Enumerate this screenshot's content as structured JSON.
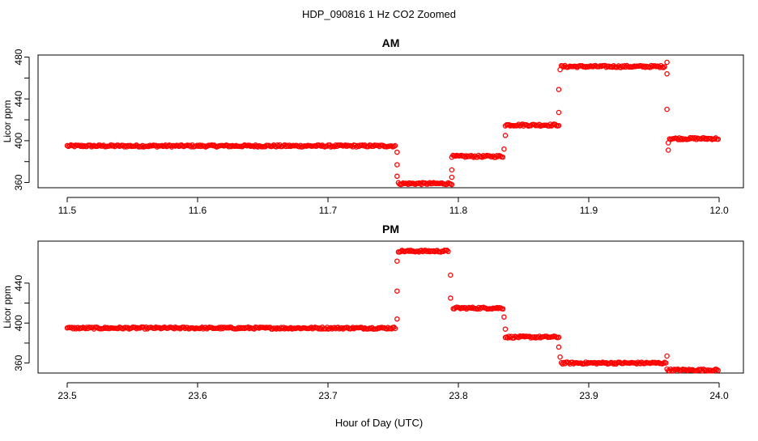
{
  "figure": {
    "title": "HDP_090816  1 Hz CO2 Zoomed",
    "xlabel": "Hour of Day (UTC)"
  },
  "colors": {
    "points": "#ff0000",
    "axis": "#000000"
  },
  "chart_data": [
    {
      "type": "scatter",
      "title": "AM",
      "xlabel": "",
      "ylabel": "Licor ppm",
      "xlim": [
        11.5,
        12.0
      ],
      "ylim": [
        355,
        482
      ],
      "xticks": [
        11.5,
        11.6,
        11.7,
        11.8,
        11.9,
        12.0
      ],
      "xtick_labels": [
        "11.5",
        "11.6",
        "11.7",
        "11.8",
        "11.9",
        "12.0"
      ],
      "yticks": [
        360,
        400,
        440,
        480
      ],
      "ytick_labels": [
        "360",
        "400",
        "440",
        "480"
      ],
      "marker": "open-circle",
      "segments": [
        {
          "x": [
            11.5,
            11.752
          ],
          "y": 395
        },
        {
          "x": [
            11.754,
            11.795
          ],
          "y": 359
        },
        {
          "x": [
            11.795,
            11.835
          ],
          "y": 385
        },
        {
          "x": [
            11.836,
            11.877
          ],
          "y": 415
        },
        {
          "x": [
            11.879,
            11.959
          ],
          "y": 471
        },
        {
          "x": [
            11.962,
            12.0
          ],
          "y": 402
        }
      ],
      "transitions": [
        {
          "x": 11.753,
          "y": 389
        },
        {
          "x": 11.753,
          "y": 377
        },
        {
          "x": 11.753,
          "y": 366
        },
        {
          "x": 11.795,
          "y": 365
        },
        {
          "x": 11.795,
          "y": 372
        },
        {
          "x": 11.835,
          "y": 392
        },
        {
          "x": 11.836,
          "y": 405
        },
        {
          "x": 11.877,
          "y": 427
        },
        {
          "x": 11.877,
          "y": 449
        },
        {
          "x": 11.878,
          "y": 468
        },
        {
          "x": 11.96,
          "y": 475
        },
        {
          "x": 11.96,
          "y": 464
        },
        {
          "x": 11.96,
          "y": 430
        },
        {
          "x": 11.961,
          "y": 398
        },
        {
          "x": 11.961,
          "y": 391
        }
      ]
    },
    {
      "type": "scatter",
      "title": "PM",
      "xlabel": "",
      "ylabel": "Licor ppm",
      "xlim": [
        23.5,
        24.0
      ],
      "ylim": [
        350,
        482
      ],
      "xticks": [
        23.5,
        23.6,
        23.7,
        23.8,
        23.9,
        24.0
      ],
      "xtick_labels": [
        "23.5",
        "23.6",
        "23.7",
        "23.8",
        "23.9",
        "24.0"
      ],
      "yticks": [
        360,
        400,
        440
      ],
      "ytick_labels": [
        "360",
        "400",
        "440"
      ],
      "marker": "open-circle",
      "segments": [
        {
          "x": [
            23.5,
            23.752
          ],
          "y": 395
        },
        {
          "x": [
            23.754,
            23.793
          ],
          "y": 472
        },
        {
          "x": [
            23.796,
            23.835
          ],
          "y": 415
        },
        {
          "x": [
            23.836,
            23.877
          ],
          "y": 386
        },
        {
          "x": [
            23.879,
            23.96
          ],
          "y": 360
        },
        {
          "x": [
            23.961,
            24.0
          ],
          "y": 353
        }
      ],
      "transitions": [
        {
          "x": 23.753,
          "y": 404
        },
        {
          "x": 23.753,
          "y": 432
        },
        {
          "x": 23.753,
          "y": 462
        },
        {
          "x": 23.794,
          "y": 448
        },
        {
          "x": 23.794,
          "y": 425
        },
        {
          "x": 23.835,
          "y": 406
        },
        {
          "x": 23.836,
          "y": 394
        },
        {
          "x": 23.877,
          "y": 376
        },
        {
          "x": 23.878,
          "y": 366
        },
        {
          "x": 23.96,
          "y": 367
        },
        {
          "x": 23.96,
          "y": 354
        }
      ]
    }
  ]
}
